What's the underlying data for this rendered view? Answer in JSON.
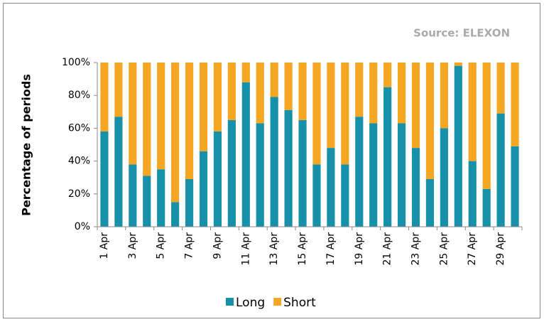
{
  "chart_data": {
    "type": "stacked_bar",
    "source": "Source: ELEXON",
    "y_label": "Percentage of periods",
    "categories": [
      "1 Apr",
      null,
      "3 Apr",
      null,
      "5 Apr",
      null,
      "7 Apr",
      null,
      "9 Apr",
      null,
      "11 Apr",
      null,
      "13 Apr",
      null,
      "15 Apr",
      null,
      "17 Apr",
      null,
      "19 Apr",
      null,
      "21 Apr",
      null,
      "23 Apr",
      null,
      "25 Apr",
      null,
      "27 Apr",
      null,
      "29 Apr",
      null
    ],
    "series": [
      {
        "name": "Long",
        "color": "#1790aa",
        "values": [
          58,
          67,
          38,
          31,
          35,
          15,
          29,
          46,
          58,
          65,
          88,
          63,
          79,
          71,
          65,
          38,
          48,
          38,
          67,
          63,
          85,
          63,
          48,
          29,
          60,
          98,
          40,
          23,
          69,
          49
        ]
      },
      {
        "name": "Short",
        "color": "#f5a623",
        "values": [
          42,
          33,
          62,
          69,
          65,
          85,
          71,
          54,
          42,
          35,
          12,
          37,
          21,
          29,
          35,
          62,
          52,
          62,
          33,
          37,
          15,
          37,
          52,
          71,
          40,
          2,
          60,
          77,
          31,
          51
        ]
      }
    ],
    "ylim": [
      0,
      100
    ],
    "yticks": [
      {
        "value": 0,
        "label": "0%"
      },
      {
        "value": 20,
        "label": "20%"
      },
      {
        "value": 40,
        "label": "40%"
      },
      {
        "value": 60,
        "label": "60%"
      },
      {
        "value": 80,
        "label": "80%"
      },
      {
        "value": 100,
        "label": "100%"
      }
    ],
    "legend": "bottom"
  }
}
